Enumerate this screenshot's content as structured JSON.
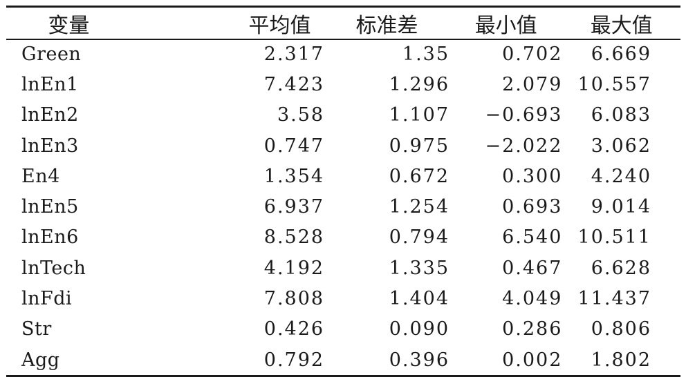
{
  "table": {
    "headers": [
      "变量",
      "平均值",
      "标准差",
      "最小值",
      "最大值"
    ],
    "rows": [
      {
        "var": "Green",
        "mean": "2.317",
        "sd": "1.35",
        "min": "0.702",
        "max": "6.669"
      },
      {
        "var": "lnEn1",
        "mean": "7.423",
        "sd": "1.296",
        "min": "2.079",
        "max": "10.557"
      },
      {
        "var": "lnEn2",
        "mean": "3.58",
        "sd": "1.107",
        "min": "−0.693",
        "max": "6.083"
      },
      {
        "var": "lnEn3",
        "mean": "0.747",
        "sd": "0.975",
        "min": "−2.022",
        "max": "3.062"
      },
      {
        "var": "En4",
        "mean": "1.354",
        "sd": "0.672",
        "min": "0.300",
        "max": "4.240"
      },
      {
        "var": "lnEn5",
        "mean": "6.937",
        "sd": "1.254",
        "min": "0.693",
        "max": "9.014"
      },
      {
        "var": "lnEn6",
        "mean": "8.528",
        "sd": "0.794",
        "min": "6.540",
        "max": "10.511"
      },
      {
        "var": "lnTech",
        "mean": "4.192",
        "sd": "1.335",
        "min": "0.467",
        "max": "6.628"
      },
      {
        "var": "lnFdi",
        "mean": "7.808",
        "sd": "1.404",
        "min": "4.049",
        "max": "11.437"
      },
      {
        "var": "Str",
        "mean": "0.426",
        "sd": "0.090",
        "min": "0.286",
        "max": "0.806"
      },
      {
        "var": "Agg",
        "mean": "0.792",
        "sd": "0.396",
        "min": "0.002",
        "max": "1.802"
      }
    ]
  }
}
